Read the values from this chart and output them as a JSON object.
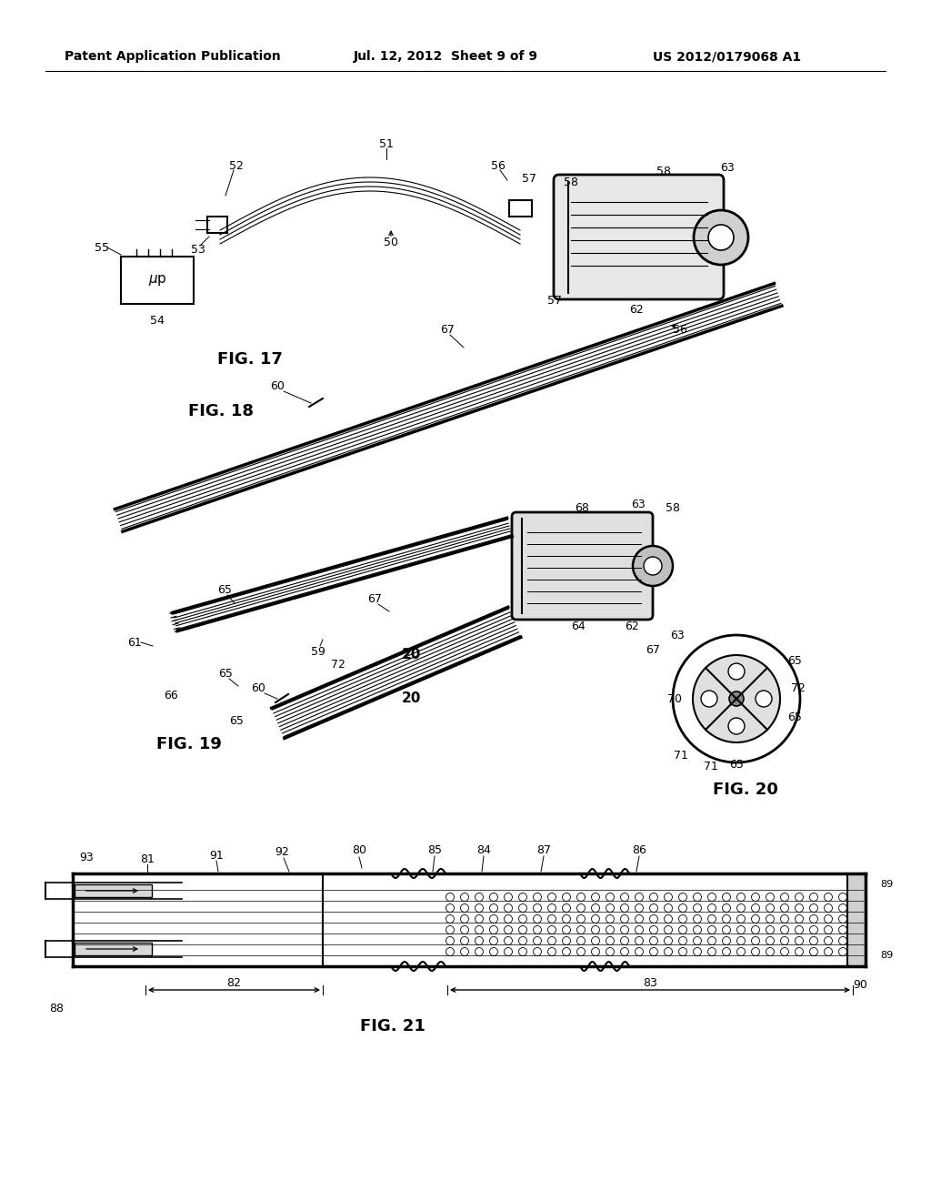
{
  "bg_color": "#ffffff",
  "header_left": "Patent Application Publication",
  "header_mid": "Jul. 12, 2012  Sheet 9 of 9",
  "header_right": "US 2012/0179068 A1",
  "fig17_label": "FIG. 17",
  "fig18_label": "FIG. 18",
  "fig19_label": "FIG. 19",
  "fig20_label": "FIG. 20",
  "fig21_label": "FIG. 21"
}
